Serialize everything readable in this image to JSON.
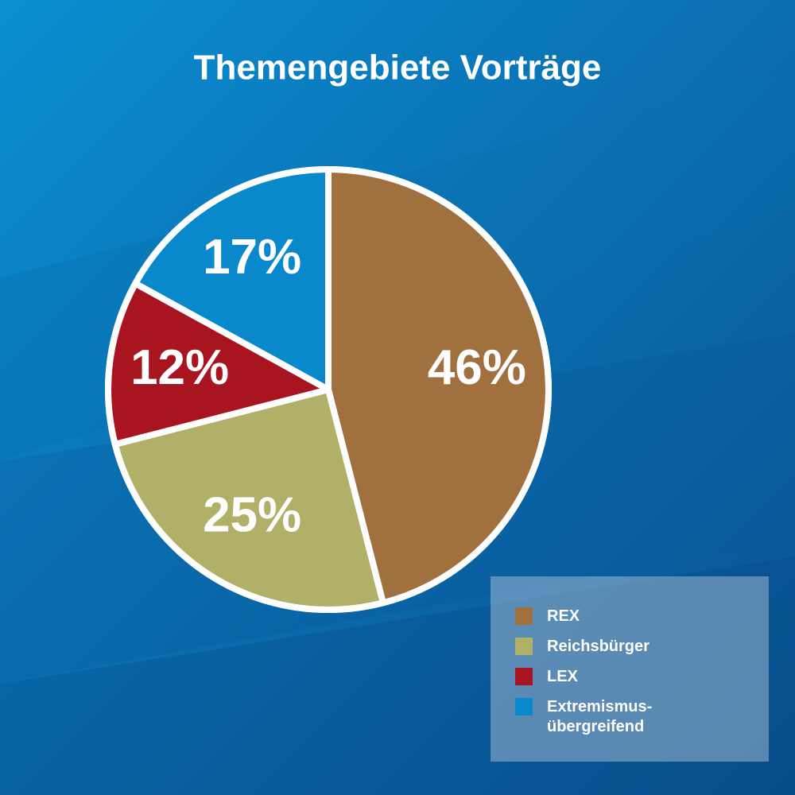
{
  "chart_data": {
    "type": "pie",
    "title": "Themengebiete Vorträge",
    "categories": [
      "REX",
      "Reichsbürger",
      "LEX",
      "Extremismus-übergreifend"
    ],
    "values": [
      46,
      25,
      12,
      17
    ],
    "value_labels": [
      "46%",
      "25%",
      "12%",
      "17%"
    ],
    "colors": [
      "#a0703f",
      "#b0b068",
      "#a8141f",
      "#0a88cc"
    ],
    "legend": "bottom-right"
  }
}
